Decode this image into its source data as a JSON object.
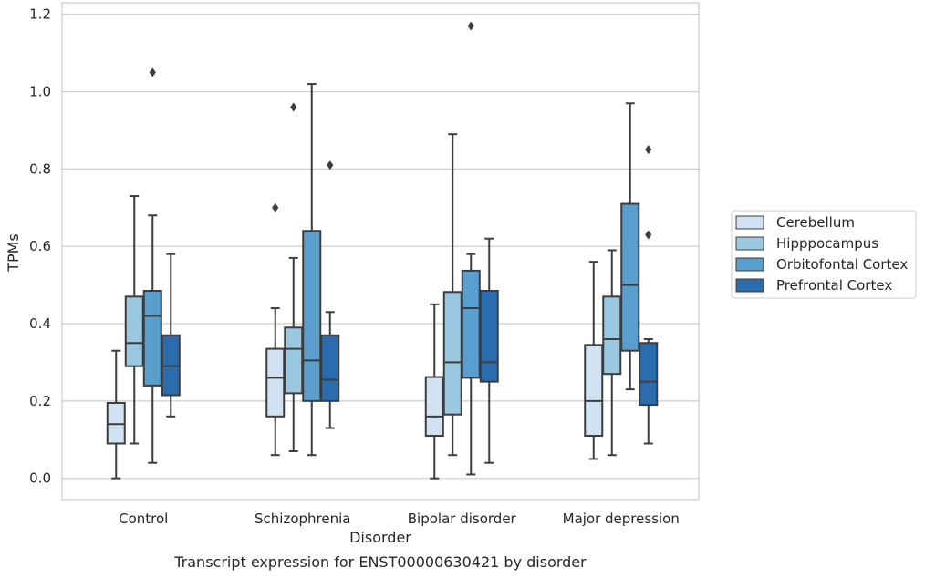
{
  "chart_data": {
    "type": "box",
    "title": "",
    "caption": "Transcript expression for ENST00000630421 by disorder",
    "xlabel": "Disorder",
    "ylabel": "TPMs",
    "ylim": [
      -0.055,
      1.23
    ],
    "yticks": [
      0.0,
      0.2,
      0.4,
      0.6,
      0.8,
      1.0,
      1.2
    ],
    "ytick_labels": [
      "0.0",
      "0.2",
      "0.4",
      "0.6",
      "0.8",
      "1.0",
      "1.2"
    ],
    "grid": "horizontal",
    "legend_position": "right",
    "categories": [
      "Control",
      "Schizophrenia",
      "Bipolar disorder",
      "Major depression"
    ],
    "series": [
      {
        "name": "Cerebellum",
        "color": "#d1e2f2",
        "boxes": [
          {
            "whisker_low": 0.0,
            "q1": 0.09,
            "median": 0.14,
            "q3": 0.195,
            "whisker_high": 0.33,
            "outliers": []
          },
          {
            "whisker_low": 0.06,
            "q1": 0.16,
            "median": 0.26,
            "q3": 0.335,
            "whisker_high": 0.44,
            "outliers": [
              0.7
            ]
          },
          {
            "whisker_low": 0.0,
            "q1": 0.11,
            "median": 0.16,
            "q3": 0.262,
            "whisker_high": 0.45,
            "outliers": []
          },
          {
            "whisker_low": 0.05,
            "q1": 0.11,
            "median": 0.2,
            "q3": 0.345,
            "whisker_high": 0.56,
            "outliers": []
          }
        ]
      },
      {
        "name": "Hipppocampus",
        "color": "#9ac8e0",
        "boxes": [
          {
            "whisker_low": 0.09,
            "q1": 0.29,
            "median": 0.35,
            "q3": 0.47,
            "whisker_high": 0.73,
            "outliers": []
          },
          {
            "whisker_low": 0.07,
            "q1": 0.22,
            "median": 0.335,
            "q3": 0.39,
            "whisker_high": 0.57,
            "outliers": [
              0.96
            ]
          },
          {
            "whisker_low": 0.06,
            "q1": 0.165,
            "median": 0.3,
            "q3": 0.482,
            "whisker_high": 0.89,
            "outliers": []
          },
          {
            "whisker_low": 0.06,
            "q1": 0.27,
            "median": 0.36,
            "q3": 0.47,
            "whisker_high": 0.59,
            "outliers": []
          }
        ]
      },
      {
        "name": "Orbitofontal Cortex",
        "color": "#5a9ecd",
        "boxes": [
          {
            "whisker_low": 0.04,
            "q1": 0.24,
            "median": 0.42,
            "q3": 0.485,
            "whisker_high": 0.68,
            "outliers": [
              1.05
            ]
          },
          {
            "whisker_low": 0.06,
            "q1": 0.2,
            "median": 0.305,
            "q3": 0.64,
            "whisker_high": 1.02,
            "outliers": []
          },
          {
            "whisker_low": 0.01,
            "q1": 0.26,
            "median": 0.44,
            "q3": 0.537,
            "whisker_high": 0.58,
            "outliers": [
              1.17
            ]
          },
          {
            "whisker_low": 0.23,
            "q1": 0.33,
            "median": 0.5,
            "q3": 0.71,
            "whisker_high": 0.97,
            "outliers": []
          }
        ]
      },
      {
        "name": "Prefrontal Cortex",
        "color": "#2a6cad",
        "boxes": [
          {
            "whisker_low": 0.16,
            "q1": 0.215,
            "median": 0.29,
            "q3": 0.37,
            "whisker_high": 0.58,
            "outliers": []
          },
          {
            "whisker_low": 0.13,
            "q1": 0.2,
            "median": 0.255,
            "q3": 0.37,
            "whisker_high": 0.43,
            "outliers": [
              0.81
            ]
          },
          {
            "whisker_low": 0.04,
            "q1": 0.25,
            "median": 0.3,
            "q3": 0.485,
            "whisker_high": 0.62,
            "outliers": []
          },
          {
            "whisker_low": 0.09,
            "q1": 0.19,
            "median": 0.25,
            "q3": 0.35,
            "whisker_high": 0.36,
            "outliers": [
              0.85,
              0.63
            ]
          }
        ]
      }
    ]
  }
}
